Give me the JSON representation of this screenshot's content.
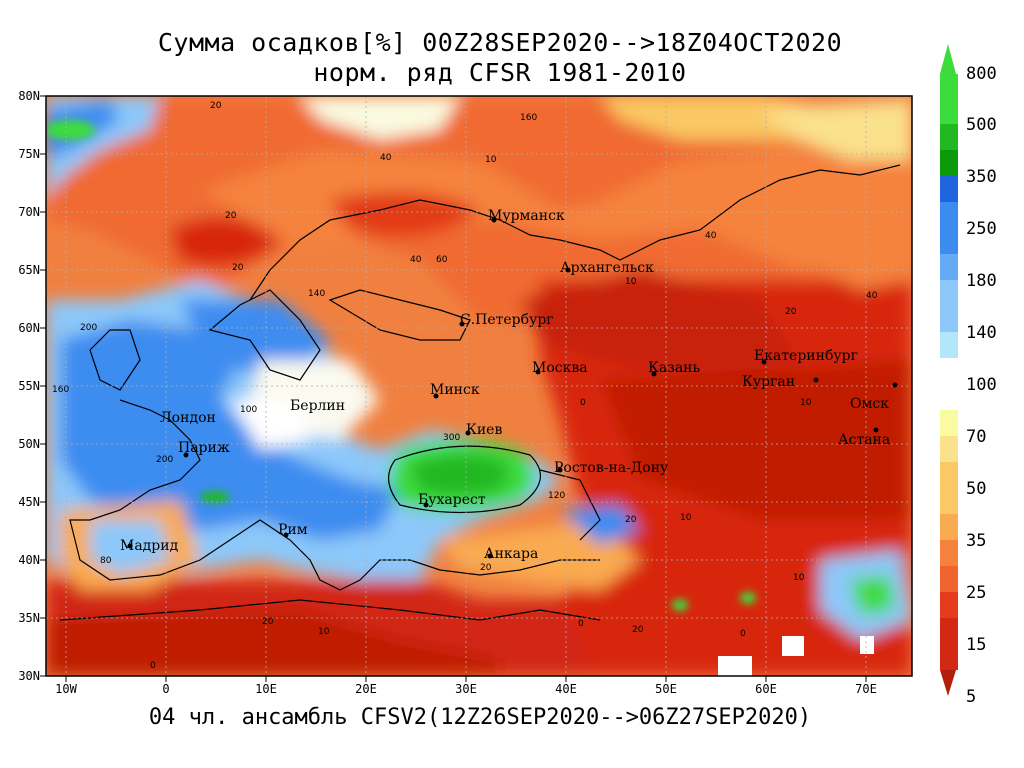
{
  "title_line1": "Сумма осадков[%] 00Z28SEP2020-->18Z04OCT2020",
  "title_line2": "норм. ряд CFSR 1981-2010",
  "footer": "04 чл. ансамбль CFSV2(12Z26SEP2020-->06Z27SEP2020)",
  "lat_ticks": [
    "80N",
    "75N",
    "70N",
    "65N",
    "60N",
    "55N",
    "50N",
    "45N",
    "40N",
    "35N",
    "30N"
  ],
  "lon_ticks": [
    "10W",
    "0",
    "10E",
    "20E",
    "30E",
    "40E",
    "50E",
    "60E",
    "70E"
  ],
  "colorbar": {
    "labels": [
      "800",
      "500",
      "350",
      "250",
      "180",
      "140",
      "100",
      "70",
      "50",
      "35",
      "25",
      "15",
      "5"
    ],
    "colors_wet": [
      "#3cdc3c",
      "#22b822",
      "#0a9a0a",
      "#1e64dc",
      "#3c8cf0",
      "#64aaf5",
      "#8cc8fa",
      "#b4e6fa"
    ],
    "colors_dry": [
      "#fafaa0",
      "#fae18c",
      "#fac864",
      "#faaa50",
      "#f5823c",
      "#f0642d",
      "#e63c1e",
      "#d22814",
      "#b41e0a"
    ]
  },
  "cities": [
    {
      "name": "Мурманск"
    },
    {
      "name": "Архангельск"
    },
    {
      "name": "С.Петербург"
    },
    {
      "name": "Москва"
    },
    {
      "name": "Казань"
    },
    {
      "name": "Екатеринбург"
    },
    {
      "name": "Курган"
    },
    {
      "name": "Омск"
    },
    {
      "name": "Астана"
    },
    {
      "name": "Минск"
    },
    {
      "name": "Берлин"
    },
    {
      "name": "Лондон"
    },
    {
      "name": "Париж"
    },
    {
      "name": "Киев"
    },
    {
      "name": "Ростов-на-Дону"
    },
    {
      "name": "Бухарест"
    },
    {
      "name": "Рим"
    },
    {
      "name": "Мадрид"
    },
    {
      "name": "Анкара"
    }
  ],
  "contour_labels": [
    "10",
    "20",
    "40",
    "60",
    "80",
    "100",
    "120",
    "140",
    "160",
    "200",
    "300",
    "0"
  ]
}
